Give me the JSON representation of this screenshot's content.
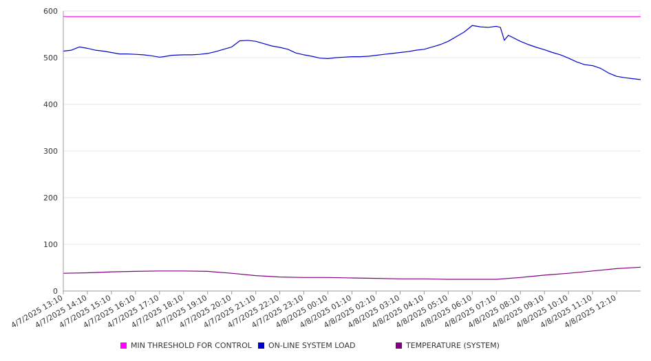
{
  "chart_data": {
    "type": "line",
    "ylim": [
      0,
      600
    ],
    "y_ticks": [
      "0",
      "100",
      "200",
      "300",
      "400",
      "500",
      "600"
    ],
    "x_tick_labels": [
      "4/7/2025 13:10",
      "4/7/2025 14:10",
      "4/7/2025 15:10",
      "4/7/2025 16:10",
      "4/7/2025 17:10",
      "4/7/2025 18:10",
      "4/7/2025 19:10",
      "4/7/2025 20:10",
      "4/7/2025 21:10",
      "4/7/2025 22:10",
      "4/7/2025 23:10",
      "4/8/2025 00:10",
      "4/8/2025 01:10",
      "4/8/2025 02:10",
      "4/8/2025 03:10",
      "4/8/2025 04:10",
      "4/8/2025 05:10",
      "4/8/2025 06:10",
      "4/8/2025 07:10",
      "4/8/2025 08:10",
      "4/8/2025 09:10",
      "4/8/2025 10:10",
      "4/8/2025 11:10",
      "4/8/2025 12:10"
    ],
    "x_range": [
      "4/7/2025 13:10",
      "4/8/2025 13:10"
    ],
    "grid": "horizontal",
    "legend_position": "bottom",
    "series": [
      {
        "name": "MIN THRESHOLD FOR CONTROL",
        "color": "#ff00ff",
        "points": [
          [
            "4/7/2025 13:10",
            588
          ],
          [
            "4/8/2025 13:10",
            588
          ]
        ]
      },
      {
        "name": "ON-LINE SYSTEM LOAD",
        "color": "#0000cc",
        "points": [
          [
            "4/7/2025 13:10",
            514
          ],
          [
            "4/7/2025 13:30",
            516
          ],
          [
            "4/7/2025 13:50",
            523
          ],
          [
            "4/7/2025 14:10",
            520
          ],
          [
            "4/7/2025 14:30",
            516
          ],
          [
            "4/7/2025 14:50",
            514
          ],
          [
            "4/7/2025 15:10",
            511
          ],
          [
            "4/7/2025 15:30",
            508
          ],
          [
            "4/7/2025 15:50",
            508
          ],
          [
            "4/7/2025 16:10",
            507
          ],
          [
            "4/7/2025 16:30",
            506
          ],
          [
            "4/7/2025 16:50",
            504
          ],
          [
            "4/7/2025 17:10",
            501
          ],
          [
            "4/7/2025 17:20",
            502
          ],
          [
            "4/7/2025 17:40",
            505
          ],
          [
            "4/7/2025 18:10",
            506
          ],
          [
            "4/7/2025 18:30",
            506
          ],
          [
            "4/7/2025 18:50",
            507
          ],
          [
            "4/7/2025 19:10",
            509
          ],
          [
            "4/7/2025 19:30",
            513
          ],
          [
            "4/7/2025 19:50",
            518
          ],
          [
            "4/7/2025 20:10",
            523
          ],
          [
            "4/7/2025 20:30",
            536
          ],
          [
            "4/7/2025 20:50",
            537
          ],
          [
            "4/7/2025 21:10",
            535
          ],
          [
            "4/7/2025 21:30",
            530
          ],
          [
            "4/7/2025 21:50",
            525
          ],
          [
            "4/7/2025 22:10",
            522
          ],
          [
            "4/7/2025 22:30",
            518
          ],
          [
            "4/7/2025 22:50",
            510
          ],
          [
            "4/7/2025 23:10",
            506
          ],
          [
            "4/7/2025 23:30",
            503
          ],
          [
            "4/7/2025 23:50",
            499
          ],
          [
            "4/8/2025 00:10",
            498
          ],
          [
            "4/8/2025 00:30",
            500
          ],
          [
            "4/8/2025 00:50",
            501
          ],
          [
            "4/8/2025 01:10",
            502
          ],
          [
            "4/8/2025 01:30",
            502
          ],
          [
            "4/8/2025 01:50",
            503
          ],
          [
            "4/8/2025 02:10",
            505
          ],
          [
            "4/8/2025 02:30",
            507
          ],
          [
            "4/8/2025 02:50",
            509
          ],
          [
            "4/8/2025 03:10",
            511
          ],
          [
            "4/8/2025 03:30",
            513
          ],
          [
            "4/8/2025 03:50",
            516
          ],
          [
            "4/8/2025 04:10",
            518
          ],
          [
            "4/8/2025 04:30",
            523
          ],
          [
            "4/8/2025 04:50",
            528
          ],
          [
            "4/8/2025 05:10",
            535
          ],
          [
            "4/8/2025 05:30",
            545
          ],
          [
            "4/8/2025 05:50",
            555
          ],
          [
            "4/8/2025 06:10",
            569
          ],
          [
            "4/8/2025 06:30",
            566
          ],
          [
            "4/8/2025 06:50",
            565
          ],
          [
            "4/8/2025 07:10",
            567
          ],
          [
            "4/8/2025 07:20",
            565
          ],
          [
            "4/8/2025 07:30",
            537
          ],
          [
            "4/8/2025 07:40",
            548
          ],
          [
            "4/8/2025 08:10",
            535
          ],
          [
            "4/8/2025 08:30",
            528
          ],
          [
            "4/8/2025 08:50",
            522
          ],
          [
            "4/8/2025 09:10",
            517
          ],
          [
            "4/8/2025 09:30",
            511
          ],
          [
            "4/8/2025 09:50",
            506
          ],
          [
            "4/8/2025 10:10",
            499
          ],
          [
            "4/8/2025 10:30",
            491
          ],
          [
            "4/8/2025 10:50",
            485
          ],
          [
            "4/8/2025 11:10",
            483
          ],
          [
            "4/8/2025 11:30",
            477
          ],
          [
            "4/8/2025 11:50",
            467
          ],
          [
            "4/8/2025 12:10",
            460
          ],
          [
            "4/8/2025 12:30",
            457
          ],
          [
            "4/8/2025 12:50",
            455
          ],
          [
            "4/8/2025 13:10",
            453
          ]
        ]
      },
      {
        "name": "TEMPERATURE (SYSTEM)",
        "color": "#800080",
        "points": [
          [
            "4/7/2025 13:10",
            38
          ],
          [
            "4/7/2025 14:10",
            39
          ],
          [
            "4/7/2025 15:10",
            41
          ],
          [
            "4/7/2025 16:10",
            42
          ],
          [
            "4/7/2025 17:10",
            43
          ],
          [
            "4/7/2025 18:10",
            43
          ],
          [
            "4/7/2025 19:10",
            42
          ],
          [
            "4/7/2025 20:10",
            38
          ],
          [
            "4/7/2025 21:10",
            33
          ],
          [
            "4/7/2025 22:10",
            30
          ],
          [
            "4/7/2025 23:10",
            29
          ],
          [
            "4/8/2025 00:10",
            29
          ],
          [
            "4/8/2025 01:10",
            28
          ],
          [
            "4/8/2025 02:10",
            27
          ],
          [
            "4/8/2025 03:10",
            26
          ],
          [
            "4/8/2025 04:10",
            26
          ],
          [
            "4/8/2025 05:10",
            25
          ],
          [
            "4/8/2025 06:10",
            25
          ],
          [
            "4/8/2025 07:10",
            25
          ],
          [
            "4/8/2025 08:10",
            29
          ],
          [
            "4/8/2025 09:10",
            34
          ],
          [
            "4/8/2025 10:10",
            38
          ],
          [
            "4/8/2025 11:10",
            43
          ],
          [
            "4/8/2025 12:10",
            48
          ],
          [
            "4/8/2025 13:10",
            51
          ]
        ]
      }
    ]
  },
  "legend": {
    "items": [
      {
        "label": "MIN THRESHOLD FOR CONTROL",
        "color": "#ff00ff"
      },
      {
        "label": "ON-LINE SYSTEM LOAD",
        "color": "#0000cc"
      },
      {
        "label": "TEMPERATURE (SYSTEM)",
        "color": "#800080"
      }
    ]
  }
}
